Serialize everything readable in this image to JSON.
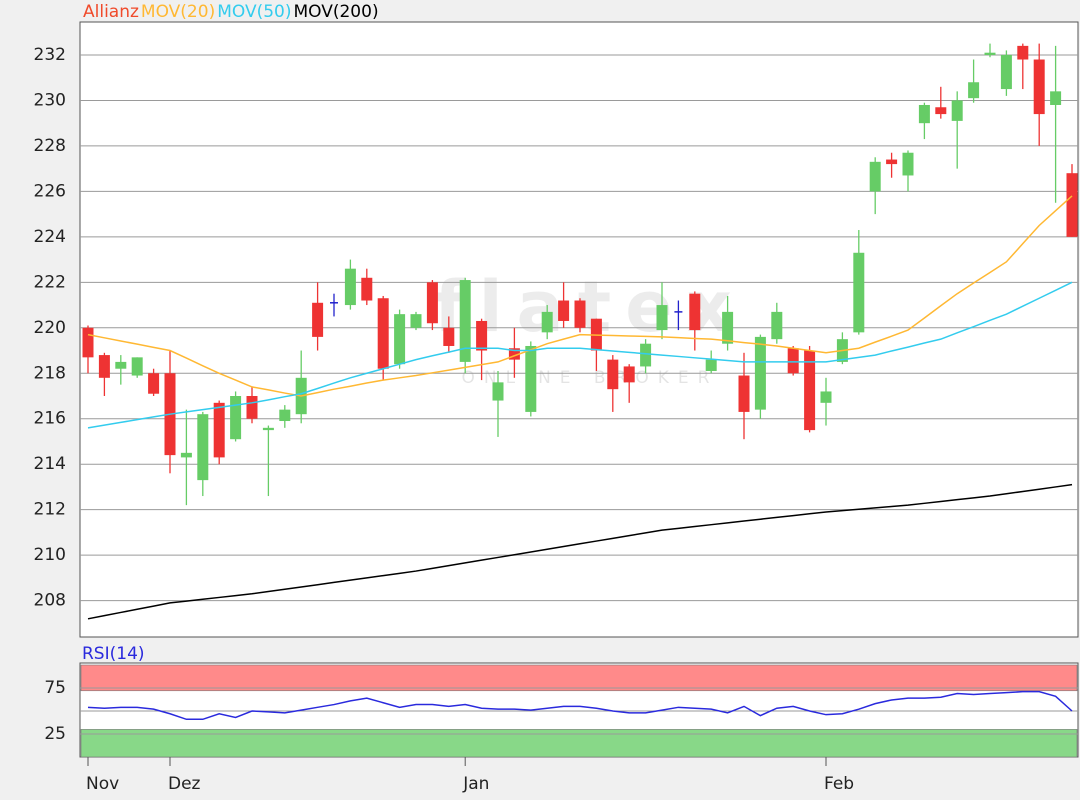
{
  "chart_data": [
    {
      "type": "candlestick",
      "ylim": [
        206.4,
        233.45
      ],
      "yticks": [
        208,
        210,
        212,
        214,
        216,
        218,
        220,
        222,
        224,
        226,
        228,
        230,
        232
      ],
      "grid": true,
      "watermark": {
        "logo": "flatex",
        "tagline": "ONLINE BROKER"
      },
      "series": [
        {
          "name": "Allianz",
          "color": "#f04a2a",
          "up_color": "#66cc66",
          "down_color": "#ee3333",
          "doji_color": "#2222cc",
          "open": [
            220,
            218.8,
            218.2,
            217.9,
            218,
            218,
            214.3,
            213.3,
            216.7,
            215.1,
            217,
            215.5,
            215.9,
            216.2,
            221.1,
            221.1,
            221,
            222.2,
            221.3,
            218.4,
            220,
            222,
            220,
            218.5,
            220.3,
            216.8,
            219.1,
            216.3,
            219.8,
            221.2,
            221.2,
            220.4,
            218.6,
            218.3,
            218.3,
            219.9,
            220.7,
            221.5,
            218.1,
            219.3,
            217.9,
            216.4,
            219.5,
            219.1,
            219,
            216.7,
            218.5,
            219.8,
            226,
            227.4,
            226.7,
            229,
            229.7,
            229.1,
            230.1,
            232,
            230.5,
            232.4,
            231.8,
            229.8,
            226.8
          ],
          "high": [
            220.1,
            218.9,
            218.8,
            218.7,
            218.2,
            219,
            216.4,
            216.3,
            216.8,
            217.2,
            217.4,
            215.7,
            216.6,
            219,
            222,
            221.5,
            223,
            222.6,
            221.4,
            220.8,
            220.7,
            222.1,
            220.5,
            222.2,
            220.4,
            218.1,
            220,
            219.4,
            221,
            222,
            221.3,
            220.4,
            218.8,
            218.4,
            219.5,
            222,
            221.2,
            221.6,
            219,
            221.4,
            218.9,
            219.7,
            221.1,
            219.2,
            219.2,
            217.8,
            219.8,
            224.3,
            227.5,
            227.7,
            227.8,
            229.9,
            230.6,
            230.4,
            231.8,
            232.5,
            232.2,
            232.5,
            232.5,
            232.4,
            227.2
          ],
          "low": [
            218,
            217,
            217.5,
            217.8,
            217,
            213.6,
            212.2,
            212.6,
            214,
            215,
            215.8,
            212.6,
            215.6,
            215.8,
            219,
            220.5,
            220.8,
            221,
            217.7,
            218.2,
            219.9,
            219.9,
            218.9,
            218,
            217.7,
            215.2,
            217.8,
            216.1,
            219.5,
            220,
            219.8,
            218.1,
            216.3,
            216.7,
            218,
            219.5,
            219.9,
            219,
            218,
            219,
            215.1,
            216,
            219.3,
            217.9,
            215.4,
            215.7,
            218.4,
            219.7,
            225,
            226.6,
            226,
            228.3,
            229.2,
            227,
            229.9,
            231.9,
            230.2,
            230.5,
            228,
            225.5,
            224
          ],
          "close": [
            218.7,
            217.8,
            218.5,
            218.7,
            217.1,
            214.4,
            214.5,
            216.2,
            214.3,
            217,
            216,
            215.6,
            216.4,
            217.8,
            219.6,
            221.1,
            222.6,
            221.2,
            218.2,
            220.6,
            220.6,
            220.2,
            219.2,
            222.1,
            219,
            217.6,
            218.6,
            219.2,
            220.7,
            220.3,
            220,
            219,
            217.3,
            217.6,
            219.3,
            221,
            220.7,
            219.9,
            218.6,
            220.7,
            216.3,
            219.6,
            220.7,
            218,
            215.5,
            217.2,
            219.5,
            223.3,
            227.3,
            227.2,
            227.7,
            229.8,
            229.4,
            230,
            230.8,
            232.1,
            232,
            231.8,
            229.4,
            230.4,
            224
          ]
        },
        {
          "name": "MOV(20)",
          "color": "#ffb833",
          "values": [
            219.7,
            219.56,
            219.42,
            219.28,
            219.14,
            219.0,
            218.67,
            218.33,
            218.0,
            217.7,
            217.4,
            217.27,
            217.13,
            217.0,
            217.15,
            217.3,
            217.43,
            217.57,
            217.7,
            217.8,
            217.9,
            218.02,
            218.14,
            218.26,
            218.38,
            218.5,
            218.77,
            219.03,
            219.3,
            219.5,
            219.7,
            219.68,
            219.66,
            219.64,
            219.62,
            219.6,
            219.57,
            219.53,
            219.5,
            219.43,
            219.35,
            219.28,
            219.2,
            219.1,
            219.0,
            218.9,
            219.0,
            219.1,
            219.37,
            219.63,
            219.9,
            220.43,
            220.97,
            221.5,
            221.97,
            222.43,
            222.9,
            223.7,
            224.5,
            225.15,
            225.8
          ]
        },
        {
          "name": "MOV(50)",
          "color": "#33ccee",
          "values": [
            215.6,
            215.72,
            215.84,
            215.96,
            216.08,
            216.2,
            216.3,
            216.4,
            216.5,
            216.6,
            216.7,
            216.83,
            216.97,
            217.1,
            217.33,
            217.57,
            217.8,
            218.0,
            218.2,
            218.4,
            218.6,
            218.77,
            218.93,
            219.1,
            219.1,
            219.1,
            219.0,
            219.0,
            219.1,
            219.1,
            219.1,
            219.04,
            218.98,
            218.92,
            218.86,
            218.8,
            218.74,
            218.68,
            218.62,
            218.56,
            218.5,
            218.5,
            218.5,
            218.5,
            218.5,
            218.5,
            218.6,
            218.7,
            218.8,
            218.98,
            219.15,
            219.33,
            219.5,
            219.78,
            220.05,
            220.33,
            220.6,
            220.95,
            221.3,
            221.65,
            222.0
          ]
        },
        {
          "name": "MOV(200)",
          "color": "#000000",
          "values": [
            207.2,
            207.34,
            207.48,
            207.62,
            207.76,
            207.9,
            207.98,
            208.06,
            208.14,
            208.22,
            208.3,
            208.4,
            208.5,
            208.6,
            208.7,
            208.8,
            208.9,
            209.0,
            209.1,
            209.2,
            209.3,
            209.42,
            209.54,
            209.66,
            209.78,
            209.9,
            210.02,
            210.14,
            210.26,
            210.38,
            210.5,
            210.62,
            210.74,
            210.86,
            210.98,
            211.1,
            211.18,
            211.26,
            211.34,
            211.42,
            211.5,
            211.58,
            211.66,
            211.74,
            211.82,
            211.9,
            211.96,
            212.02,
            212.08,
            212.14,
            212.2,
            212.28,
            212.36,
            212.44,
            212.52,
            212.6,
            212.7,
            212.8,
            212.9,
            213.0,
            213.1
          ]
        }
      ]
    },
    {
      "type": "line",
      "title": "RSI(14)",
      "color": "#2a2add",
      "ylim": [
        0,
        100
      ],
      "yticks": [
        25,
        75
      ],
      "midline": 50,
      "zones": [
        {
          "from": 72,
          "to": 100,
          "color": "#ff8a8a"
        },
        {
          "from": 0,
          "to": 30,
          "color": "#88d888"
        }
      ],
      "categories": [
        "Nov",
        null,
        null,
        null,
        null,
        "Dez",
        null,
        null,
        null,
        null,
        null,
        null,
        null,
        null,
        null,
        null,
        null,
        null,
        null,
        null,
        null,
        null,
        null,
        "Jan",
        null,
        null,
        null,
        null,
        null,
        null,
        null,
        null,
        null,
        null,
        null,
        null,
        null,
        null,
        null,
        null,
        null,
        null,
        null,
        null,
        null,
        "Feb",
        null,
        null,
        null,
        null,
        null,
        null,
        null,
        null,
        null,
        null,
        null,
        null,
        null,
        null,
        null
      ],
      "values": [
        54,
        53,
        54,
        54,
        52,
        47,
        41,
        41,
        47,
        43,
        50,
        49,
        48,
        51,
        54,
        57,
        61,
        64,
        59,
        54,
        57,
        57,
        55,
        57,
        53,
        52,
        52,
        51,
        53,
        55,
        55,
        53,
        50,
        48,
        48,
        51,
        54,
        53,
        52,
        48,
        55,
        45,
        53,
        55,
        50,
        46,
        47,
        52,
        58,
        62,
        64,
        64,
        65,
        69,
        68,
        69,
        70,
        71,
        71,
        66,
        50
      ]
    }
  ]
}
